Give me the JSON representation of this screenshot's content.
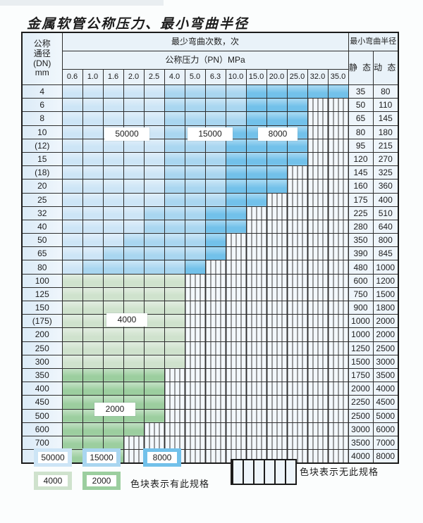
{
  "title": "金属软管公称压力、最小弯曲半径",
  "colors": {
    "zone_50000": "#cde5f6",
    "zone_15000": "#a9d6f0",
    "zone_8000": "#72c1ea",
    "zone_4000": "#cfe2cd",
    "zone_2000": "#9cce9f",
    "no_spec_bg": "#f3f8fc",
    "grid_line": "#2e2e2e"
  },
  "table": {
    "header": {
      "dn_line1": "公称",
      "dn_line2": "通径",
      "dn_line3": "(DN)",
      "dn_line4": "mm",
      "cycles_label": "最少弯曲次数，次",
      "pressure_label": "公称压力（PN）MPa",
      "pressures": [
        "0.6",
        "1.0",
        "1.6",
        "2.0",
        "2.5",
        "4.0",
        "5.0",
        "6.3",
        "10.0",
        "15.0",
        "20.0",
        "25.0",
        "32.0",
        "35.0"
      ],
      "radius_label": "最小弯曲半径",
      "static_label": "静 态",
      "dynamic_label": "动 态"
    },
    "rows": [
      {
        "dn": "4",
        "static": "35",
        "dynamic": "80",
        "zones": [
          [
            "b1",
            5
          ],
          [
            "b2",
            4
          ],
          [
            "b3",
            5
          ]
        ]
      },
      {
        "dn": "6",
        "static": "50",
        "dynamic": "110",
        "zones": [
          [
            "b1",
            5
          ],
          [
            "b2",
            4
          ],
          [
            "b3",
            3
          ]
        ]
      },
      {
        "dn": "8",
        "static": "65",
        "dynamic": "145",
        "zones": [
          [
            "b1",
            5
          ],
          [
            "b2",
            4
          ],
          [
            "b3",
            3
          ]
        ]
      },
      {
        "dn": "10",
        "static": "80",
        "dynamic": "180",
        "zones": [
          [
            "b1",
            5
          ],
          [
            "b2",
            3
          ],
          [
            "b3",
            4
          ]
        ]
      },
      {
        "dn": "(12)",
        "static": "95",
        "dynamic": "215",
        "zones": [
          [
            "b1",
            5
          ],
          [
            "b2",
            3
          ],
          [
            "b3",
            4
          ]
        ]
      },
      {
        "dn": "15",
        "static": "120",
        "dynamic": "270",
        "zones": [
          [
            "b1",
            5
          ],
          [
            "b2",
            3
          ],
          [
            "b3",
            4
          ]
        ]
      },
      {
        "dn": "(18)",
        "static": "145",
        "dynamic": "325",
        "zones": [
          [
            "b1",
            5
          ],
          [
            "b2",
            3
          ],
          [
            "b3",
            3
          ]
        ]
      },
      {
        "dn": "20",
        "static": "160",
        "dynamic": "360",
        "zones": [
          [
            "b1",
            5
          ],
          [
            "b2",
            3
          ],
          [
            "b3",
            3
          ]
        ]
      },
      {
        "dn": "25",
        "static": "175",
        "dynamic": "400",
        "zones": [
          [
            "b1",
            5
          ],
          [
            "b2",
            3
          ],
          [
            "b3",
            2
          ]
        ]
      },
      {
        "dn": "32",
        "static": "225",
        "dynamic": "510",
        "zones": [
          [
            "b1",
            4
          ],
          [
            "b2",
            3
          ],
          [
            "b3",
            2
          ]
        ]
      },
      {
        "dn": "40",
        "static": "280",
        "dynamic": "640",
        "zones": [
          [
            "b1",
            4
          ],
          [
            "b2",
            3
          ],
          [
            "b3",
            2
          ]
        ]
      },
      {
        "dn": "50",
        "static": "350",
        "dynamic": "800",
        "zones": [
          [
            "b1",
            3
          ],
          [
            "b2",
            4
          ],
          [
            "b3",
            1
          ]
        ]
      },
      {
        "dn": "65",
        "static": "390",
        "dynamic": "845",
        "zones": [
          [
            "b1",
            2
          ],
          [
            "b2",
            5
          ],
          [
            "b3",
            1
          ]
        ]
      },
      {
        "dn": "80",
        "static": "480",
        "dynamic": "1000",
        "zones": [
          [
            "b1",
            1
          ],
          [
            "b2",
            5
          ],
          [
            "b3",
            1
          ]
        ]
      },
      {
        "dn": "100",
        "static": "600",
        "dynamic": "1200",
        "zones": [
          [
            "g1",
            6
          ]
        ]
      },
      {
        "dn": "125",
        "static": "750",
        "dynamic": "1500",
        "zones": [
          [
            "g1",
            6
          ]
        ]
      },
      {
        "dn": "150",
        "static": "900",
        "dynamic": "1800",
        "zones": [
          [
            "g1",
            6
          ]
        ]
      },
      {
        "dn": "(175)",
        "static": "1000",
        "dynamic": "2000",
        "zones": [
          [
            "g1",
            6
          ]
        ]
      },
      {
        "dn": "200",
        "static": "1000",
        "dynamic": "2000",
        "zones": [
          [
            "g1",
            6
          ]
        ]
      },
      {
        "dn": "250",
        "static": "1250",
        "dynamic": "2500",
        "zones": [
          [
            "g1",
            6
          ]
        ]
      },
      {
        "dn": "300",
        "static": "1500",
        "dynamic": "3000",
        "zones": [
          [
            "g1",
            6
          ]
        ]
      },
      {
        "dn": "350",
        "static": "1750",
        "dynamic": "3500",
        "zones": [
          [
            "g2",
            5
          ]
        ]
      },
      {
        "dn": "400",
        "static": "2000",
        "dynamic": "4000",
        "zones": [
          [
            "g2",
            5
          ]
        ]
      },
      {
        "dn": "450",
        "static": "2250",
        "dynamic": "4500",
        "zones": [
          [
            "g2",
            5
          ]
        ]
      },
      {
        "dn": "500",
        "static": "2500",
        "dynamic": "5000",
        "zones": [
          [
            "g2",
            5
          ]
        ]
      },
      {
        "dn": "600",
        "static": "3000",
        "dynamic": "6000",
        "zones": [
          [
            "g2",
            4
          ]
        ]
      },
      {
        "dn": "700",
        "static": "3500",
        "dynamic": "7000",
        "zones": [
          [
            "g2",
            3
          ]
        ]
      },
      {
        "dn": "800",
        "static": "4000",
        "dynamic": "8000",
        "zones": [
          [
            "g2",
            3
          ]
        ]
      }
    ]
  },
  "zone_labels": {
    "l50000": "50000",
    "l15000": "15000",
    "l8000": "8000",
    "l4000": "4000",
    "l2000": "2000"
  },
  "legend": {
    "items": [
      {
        "text": "50000"
      },
      {
        "text": "15000"
      },
      {
        "text": "8000"
      },
      {
        "text": "4000"
      },
      {
        "text": "2000"
      }
    ],
    "has_label": "色块表示有此规格",
    "none_label": "色块表示无此规格"
  }
}
